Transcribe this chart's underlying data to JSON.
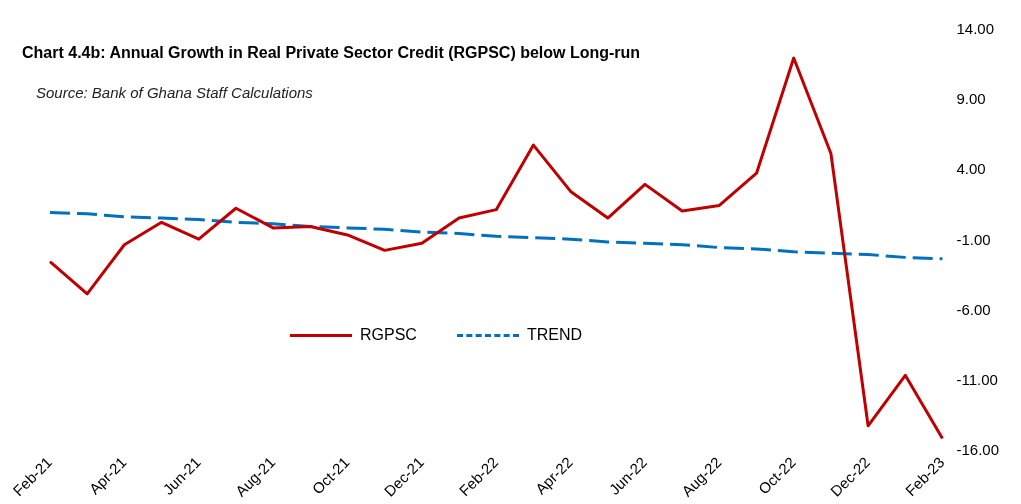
{
  "chart_data": {
    "type": "line",
    "title": "Chart 4.4b: Annual Growth in Real Private Sector Credit (RGPSC) below Long-run",
    "annotations": [
      "Source: Bank of Ghana Staff Calculations"
    ],
    "categories": [
      "Feb-21",
      null,
      "Apr-21",
      null,
      "Jun-21",
      null,
      "Aug-21",
      null,
      "Oct-21",
      null,
      "Dec-21",
      null,
      "Feb-22",
      null,
      "Apr-22",
      null,
      "Jun-22",
      null,
      "Aug-22",
      null,
      "Oct-22",
      null,
      "Dec-22",
      null,
      "Feb-23"
    ],
    "series": [
      {
        "name": "RGPSC",
        "color": "#c00000",
        "line_style": "solid",
        "values": [
          -2.5,
          -4.8,
          -1.3,
          0.3,
          -0.9,
          1.3,
          -0.1,
          0.0,
          -0.6,
          -1.7,
          -1.2,
          0.6,
          1.2,
          5.8,
          2.5,
          0.6,
          3.0,
          1.1,
          1.5,
          3.8,
          12.0,
          5.2,
          -14.2,
          -10.6,
          -15.1
        ]
      },
      {
        "name": "TREND",
        "color": "#0070c0",
        "line_style": "dashed",
        "values": [
          1.0,
          0.9,
          0.7,
          0.6,
          0.5,
          0.3,
          0.2,
          0.0,
          -0.1,
          -0.2,
          -0.4,
          -0.5,
          -0.7,
          -0.8,
          -0.9,
          -1.1,
          -1.2,
          -1.3,
          -1.5,
          -1.6,
          -1.8,
          -1.9,
          -2.0,
          -2.2,
          -2.3
        ]
      }
    ],
    "ylim": [
      -16,
      14
    ],
    "yticks": [
      {
        "value": 14,
        "label": "14.00"
      },
      {
        "value": 9,
        "label": "9.00"
      },
      {
        "value": 4,
        "label": "4.00"
      },
      {
        "value": -1,
        "label": "-1.00"
      },
      {
        "value": -6,
        "label": "-6.00"
      },
      {
        "value": -11,
        "label": "-11.00"
      },
      {
        "value": -16,
        "label": "-16.00"
      }
    ],
    "grid": false,
    "legend": "center",
    "marker": "none"
  }
}
